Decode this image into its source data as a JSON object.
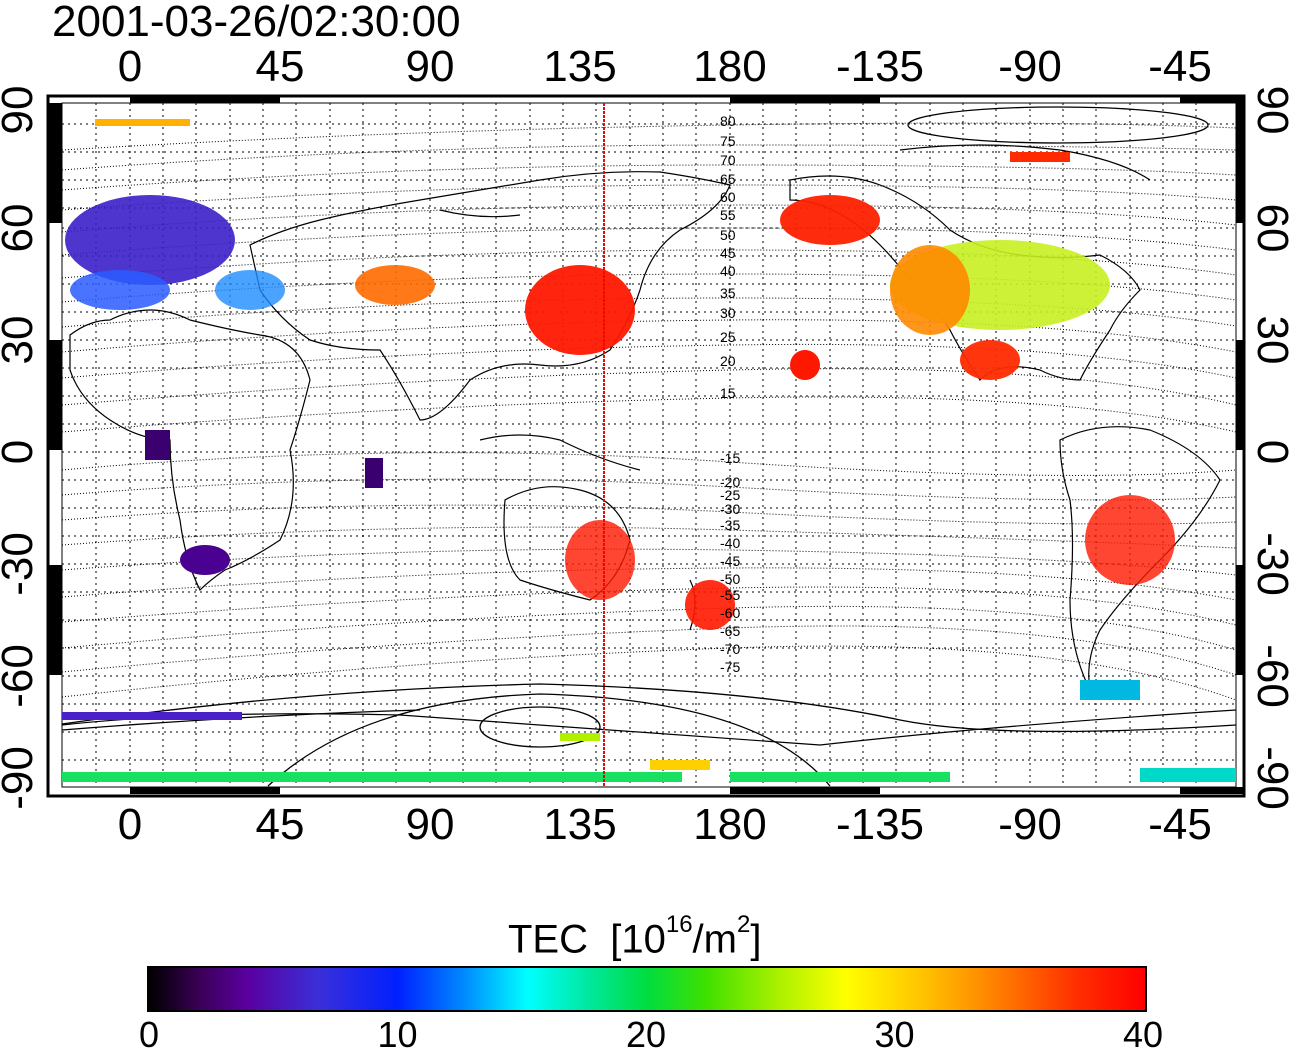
{
  "title": "2001-03-26/02:30:00",
  "map": {
    "lon_ticks_top": [
      "0",
      "45",
      "90",
      "135",
      "180",
      "-135",
      "-90",
      "-45"
    ],
    "lon_ticks_bottom": [
      "0",
      "45",
      "90",
      "135",
      "180",
      "-135",
      "-90",
      "-45"
    ],
    "lat_ticks_left": [
      "90",
      "60",
      "30",
      "0",
      "-30",
      "-60",
      "-90"
    ],
    "lat_ticks_right": [
      "90",
      "60",
      "30",
      "0",
      "-30",
      "-60",
      "-90"
    ],
    "magnetic_latitude_labels": [
      "80",
      "75",
      "70",
      "65",
      "60",
      "55",
      "50",
      "45",
      "40",
      "35",
      "30",
      "25",
      "20",
      "15",
      "-15",
      "-20",
      "-25",
      "-30",
      "-35",
      "-40",
      "-45",
      "-50",
      "-55",
      "-60",
      "-65",
      "-70",
      "-75"
    ],
    "marker_line_color": "#ff0000",
    "grid": "dotted"
  },
  "colorbar": {
    "title": "TEC",
    "unit_prefix": "[10",
    "unit_exp1": "16",
    "unit_mid": "/m",
    "unit_exp2": "2",
    "unit_suffix": "]",
    "ticks": [
      "0",
      "10",
      "20",
      "30",
      "40"
    ],
    "range": [
      0,
      40
    ],
    "colormap": [
      "#000000",
      "#5a00a0",
      "#0020ff",
      "#00ffff",
      "#00dd40",
      "#ffff00",
      "#ff8000",
      "#ff0000"
    ]
  }
}
